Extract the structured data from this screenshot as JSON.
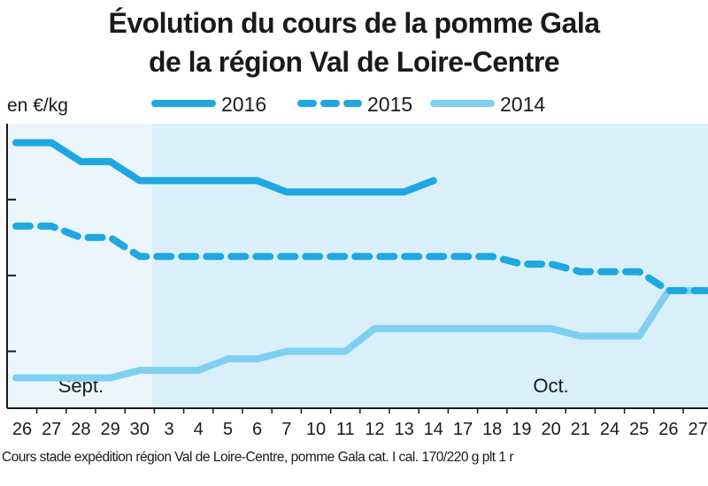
{
  "chart_data": {
    "type": "line",
    "title": "Évolution du cours de la pomme Gala de la région Val de Loire-Centre",
    "title_lines": [
      "Évolution du cours de la pomme Gala",
      "de la région Val de Loire-Centre"
    ],
    "unit_label": "en €/kg",
    "source": "Cours stade expédition région Val de Loire-Centre, pomme Gala cat. I cal. 170/220 g plt 1 r",
    "categories": [
      "26",
      "27",
      "28",
      "29",
      "30",
      "3",
      "4",
      "5",
      "6",
      "7",
      "10",
      "11",
      "12",
      "13",
      "14",
      "17",
      "18",
      "19",
      "20",
      "21",
      "24",
      "25",
      "26",
      "27"
    ],
    "month_labels": [
      {
        "label": "Sept.",
        "category_index": 2
      },
      {
        "label": "Oct.",
        "category_index": 18
      }
    ],
    "series": [
      {
        "name": "2016",
        "color": "#1ea7e1",
        "dash": "solid",
        "values": [
          1.95,
          1.95,
          1.9,
          1.9,
          1.85,
          1.85,
          1.85,
          1.85,
          1.85,
          1.82,
          1.82,
          1.82,
          1.82,
          1.82,
          1.85,
          null,
          null,
          null,
          null,
          null,
          null,
          null,
          null,
          null
        ]
      },
      {
        "name": "2015",
        "color": "#1ea7e1",
        "dash": "dashed",
        "values": [
          1.73,
          1.73,
          1.7,
          1.7,
          1.65,
          1.65,
          1.65,
          1.65,
          1.65,
          1.65,
          1.65,
          1.65,
          1.65,
          1.65,
          1.65,
          1.65,
          1.65,
          1.63,
          1.63,
          1.61,
          1.61,
          1.61,
          1.56,
          1.56
        ]
      },
      {
        "name": "2014",
        "color": "#7fd0f0",
        "dash": "solid",
        "values": [
          1.33,
          1.33,
          1.33,
          1.33,
          1.35,
          1.35,
          1.35,
          1.38,
          1.38,
          1.4,
          1.4,
          1.4,
          1.46,
          1.46,
          1.46,
          1.46,
          1.46,
          1.46,
          1.46,
          1.44,
          1.44,
          1.44,
          1.56,
          1.56
        ]
      }
    ],
    "ylim": [
      1.25,
      2.0
    ],
    "yticks": [
      1.4,
      1.6,
      1.8
    ],
    "ytick_labels_shown": false,
    "legend_position": "top",
    "background_bands": [
      "#eaf6fc",
      "#d9f0fa"
    ]
  }
}
